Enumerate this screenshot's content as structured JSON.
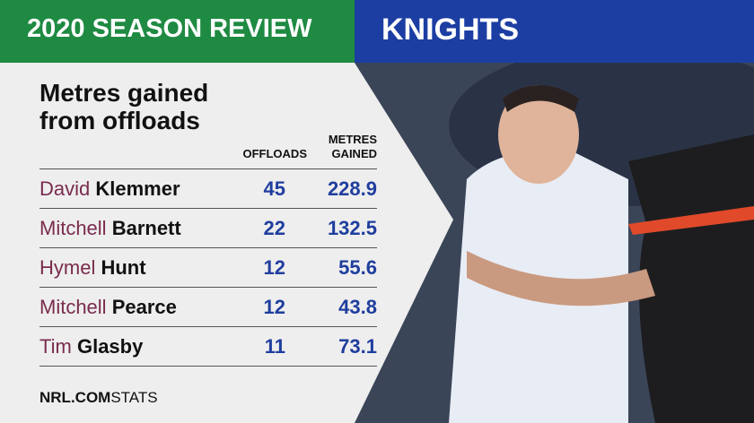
{
  "header": {
    "title": "2020 SEASON REVIEW",
    "team": "KNIGHTS"
  },
  "table": {
    "title": "Metres gained from offloads",
    "columns": [
      "OFFLOADS",
      "METRES GAINED"
    ],
    "rows": [
      [
        "David",
        "Klemmer",
        45,
        228.9
      ],
      [
        "Mitchell",
        "Barnett",
        22,
        132.5
      ],
      [
        "Hymel",
        "Hunt",
        12,
        55.6
      ],
      [
        "Mitchell",
        "Pearce",
        12,
        43.8
      ],
      [
        "Tim",
        "Glasby",
        11,
        73.1
      ]
    ]
  },
  "footer": {
    "brand": "NRL.COM",
    "label": "STATS"
  }
}
